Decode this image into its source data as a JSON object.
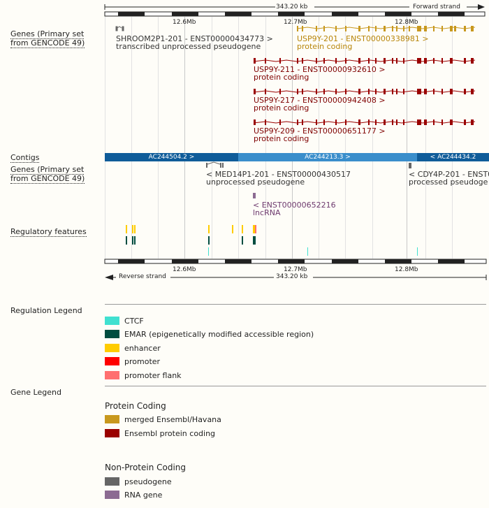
{
  "scale": {
    "span_label": "343.20 kb",
    "forward_strand": "Forward strand",
    "reverse_strand": "Reverse strand",
    "ticks": [
      "12.6Mb",
      "12.7Mb",
      "12.8Mb"
    ]
  },
  "tracks": {
    "genes_top_label": "Genes (Primary set from GENCODE 49)",
    "contigs_label": "Contigs",
    "genes_bottom_label": "Genes (Primary set from GENCODE 49)",
    "regulatory_label": "Regulatory features"
  },
  "genes_forward": [
    {
      "id": "shroom",
      "name": "SHROOM2P1-201 - ENST00000434773 >",
      "biotype": "transcribed unprocessed pseudogene"
    },
    {
      "id": "usp9y201",
      "name": "USP9Y-201 - ENST00000338981 >",
      "biotype": "protein coding"
    },
    {
      "id": "usp9y211",
      "name": "USP9Y-211 - ENST00000932610 >",
      "biotype": "protein coding"
    },
    {
      "id": "usp9y217",
      "name": "USP9Y-217 - ENST00000942408 >",
      "biotype": "protein coding"
    },
    {
      "id": "usp9y209",
      "name": "USP9Y-209 - ENST00000651177 >",
      "biotype": "protein coding"
    }
  ],
  "contigs": [
    "AC244504.2 >",
    "AC244213.3 >",
    "< AC244434.2"
  ],
  "genes_reverse": [
    {
      "id": "med14",
      "name": "< MED14P1-201 - ENST00000430517",
      "biotype": "unprocessed pseudogene"
    },
    {
      "id": "cdy4p",
      "name": "< CDY4P-201 - ENST0",
      "biotype": "processed pseudoge"
    },
    {
      "id": "lnc",
      "name": "< ENST00000652216",
      "biotype": "lncRNA"
    }
  ],
  "regulation_legend": {
    "title": "Regulation Legend",
    "items": [
      {
        "label": "CTCF",
        "color": "#40e0d0"
      },
      {
        "label": "EMAR (epigenetically modified accessible region)",
        "color": "#004d40"
      },
      {
        "label": "enhancer",
        "color": "#ffcc00"
      },
      {
        "label": "promoter",
        "color": "#ff0000"
      },
      {
        "label": "promoter flank",
        "color": "#ff6f6f"
      }
    ]
  },
  "gene_legend": {
    "title": "Gene Legend",
    "protein_coding_title": "Protein Coding",
    "protein_coding": [
      {
        "label": "merged Ensembl/Havana",
        "color": "#c8981e"
      },
      {
        "label": "Ensembl protein coding",
        "color": "#9a0000"
      }
    ],
    "non_protein_title": "Non-Protein Coding",
    "non_protein": [
      {
        "label": "pseudogene",
        "color": "#666666"
      },
      {
        "label": "RNA gene",
        "color": "#8c6b92"
      }
    ]
  }
}
